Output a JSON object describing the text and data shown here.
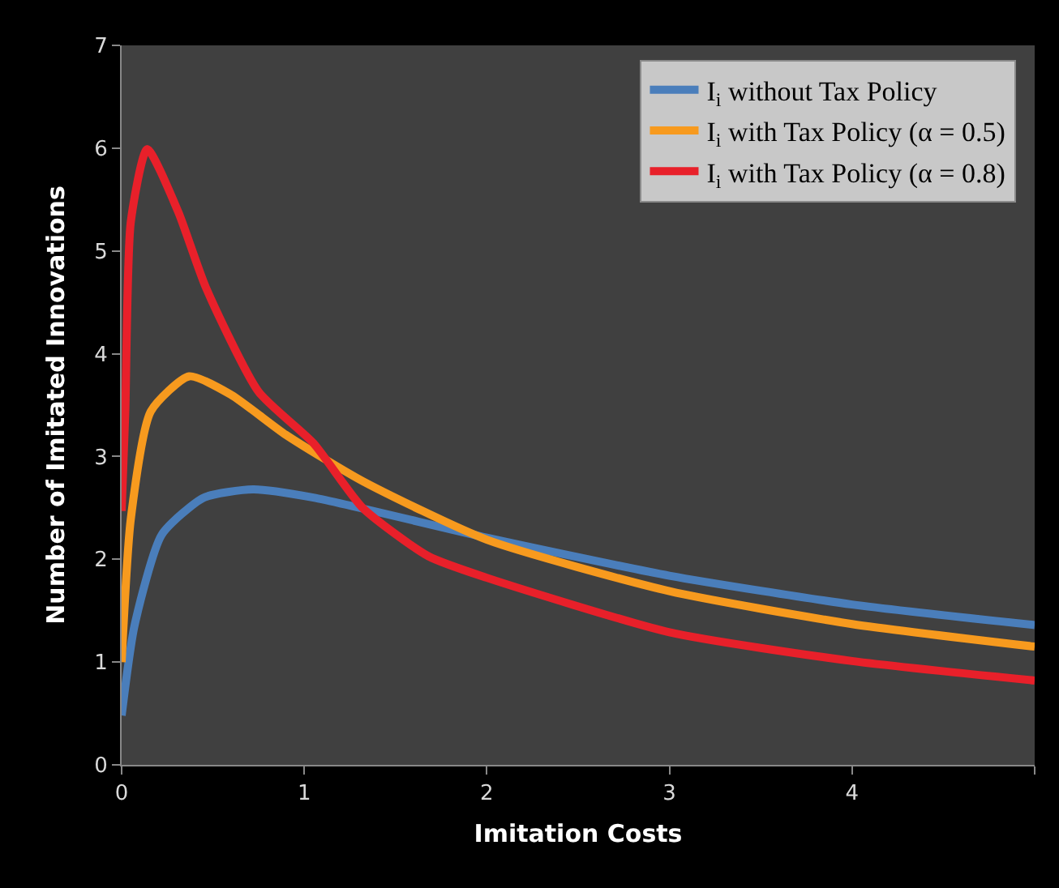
{
  "chart_data": {
    "type": "line",
    "xlabel": "Imitation Costs",
    "ylabel": "Number of Imitated Innovations",
    "xlim": [
      0,
      5
    ],
    "ylim": [
      0,
      7
    ],
    "xticks": [
      0,
      1,
      2,
      3,
      4,
      {
        "value": 5,
        "label": null
      }
    ],
    "yticks": [
      0,
      1,
      2,
      3,
      4,
      5,
      6,
      7
    ],
    "grid": false,
    "legend": "top right",
    "marker": "none",
    "line_style": "solid",
    "series": [
      {
        "name": "I$_{i}$ without Tax Policy",
        "color": "#4a7ebb",
        "x": [
          0,
          0.07,
          0.22,
          0.45,
          0.72,
          1.05,
          2,
          3,
          4,
          5
        ],
        "values": [
          0.48,
          1.35,
          2.24,
          2.6,
          2.68,
          2.6,
          2.21,
          1.84,
          1.56,
          1.36
        ]
      },
      {
        "name": "I$_{i}$ with Tax Policy (α = 0.5)",
        "color": "#f79a1e",
        "x": [
          0,
          0.05,
          0.16,
          0.37,
          0.6,
          0.9,
          1.32,
          2,
          3,
          4,
          5
        ],
        "values": [
          1.0,
          2.39,
          3.44,
          3.78,
          3.6,
          3.21,
          2.76,
          2.19,
          1.69,
          1.37,
          1.15
        ]
      },
      {
        "name": "I$_{i}$ with Tax Policy (α = 0.8)",
        "color": "#e8202a",
        "x": [
          0,
          0.02,
          0.05,
          0.14,
          0.31,
          0.46,
          0.75,
          1.05,
          1.32,
          1.68,
          2,
          3,
          4,
          5
        ],
        "values": [
          2.47,
          3.44,
          5.28,
          5.99,
          5.38,
          4.65,
          3.63,
          3.13,
          2.5,
          2.03,
          1.82,
          1.29,
          1.01,
          0.82
        ]
      }
    ]
  }
}
